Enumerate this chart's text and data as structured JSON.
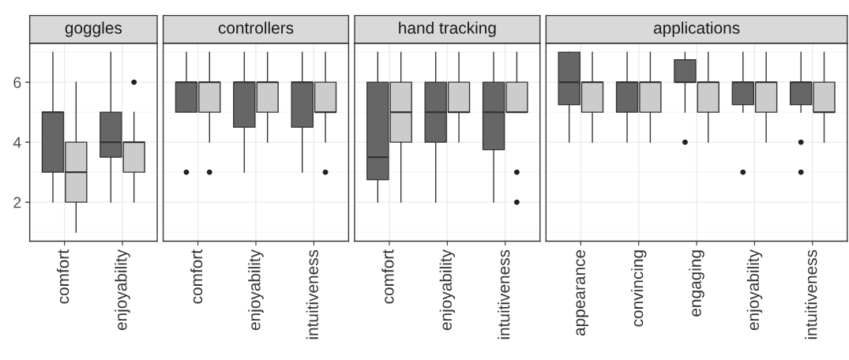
{
  "chart_data": [
    {
      "type": "box",
      "title": "goggles",
      "categories": [
        "comfort",
        "enjoyability"
      ],
      "ylim": [
        0.7,
        7.3
      ],
      "yticks": [
        2,
        4,
        6
      ],
      "grid": true,
      "series": [
        {
          "color": "#666666",
          "boxes": [
            {
              "low": 2,
              "q1": 3,
              "median": 5,
              "q3": 5,
              "high": 7
            },
            {
              "low": 2,
              "q1": 3.5,
              "median": 4,
              "q3": 5,
              "high": 7
            }
          ]
        },
        {
          "color": "#cccccc",
          "boxes": [
            {
              "low": 1,
              "q1": 2,
              "median": 3,
              "q3": 4,
              "high": 6
            },
            {
              "low": 2,
              "q1": 3,
              "median": 4,
              "q3": 4,
              "high": 5,
              "outliers": [
                6
              ]
            }
          ]
        }
      ]
    },
    {
      "type": "box",
      "title": "controllers",
      "categories": [
        "comfort",
        "enjoyability",
        "intuitiveness"
      ],
      "ylim": [
        0.7,
        7.3
      ],
      "yticks": [
        2,
        4,
        6
      ],
      "grid": true,
      "tick_labels": "x",
      "series": [
        {
          "color": "#666666",
          "boxes": [
            {
              "low": 5,
              "q1": 5,
              "median": 6,
              "q3": 6,
              "high": 7,
              "outliers": [
                3
              ]
            },
            {
              "low": 3,
              "q1": 4.5,
              "median": 6,
              "q3": 6,
              "high": 7
            },
            {
              "low": 3,
              "q1": 4.5,
              "median": 6,
              "q3": 6,
              "high": 7
            }
          ]
        },
        {
          "color": "#cccccc",
          "boxes": [
            {
              "low": 4,
              "q1": 5,
              "median": 6,
              "q3": 6,
              "high": 7,
              "outliers": [
                3
              ]
            },
            {
              "low": 4,
              "q1": 5,
              "median": 6,
              "q3": 6,
              "high": 7
            },
            {
              "low": 4,
              "q1": 5,
              "median": 5,
              "q3": 6,
              "high": 7,
              "outliers": [
                3
              ]
            }
          ]
        }
      ]
    },
    {
      "type": "box",
      "title": "hand tracking",
      "categories": [
        "comfort",
        "enjoyability",
        "intuitiveness"
      ],
      "ylim": [
        0.7,
        7.3
      ],
      "yticks": [
        2,
        4,
        6
      ],
      "grid": true,
      "tick_labels": "x",
      "series": [
        {
          "color": "#666666",
          "boxes": [
            {
              "low": 2,
              "q1": 2.75,
              "median": 3.5,
              "q3": 6,
              "high": 7
            },
            {
              "low": 2,
              "q1": 4,
              "median": 5,
              "q3": 6,
              "high": 7
            },
            {
              "low": 2,
              "q1": 3.75,
              "median": 5,
              "q3": 6,
              "high": 7
            }
          ]
        },
        {
          "color": "#cccccc",
          "boxes": [
            {
              "low": 2,
              "q1": 4,
              "median": 5,
              "q3": 6,
              "high": 7
            },
            {
              "low": 4,
              "q1": 5,
              "median": 5,
              "q3": 6,
              "high": 7
            },
            {
              "low": 5,
              "q1": 5,
              "median": 5,
              "q3": 6,
              "high": 7,
              "outliers": [
                3,
                2
              ]
            }
          ]
        }
      ]
    },
    {
      "type": "box",
      "title": "applications",
      "categories": [
        "appearance",
        "convincing",
        "engaging",
        "enjoyability",
        "intuitiveness"
      ],
      "ylim": [
        0.7,
        7.3
      ],
      "yticks": [
        2,
        4,
        6
      ],
      "grid": true,
      "tick_labels": "x",
      "series": [
        {
          "color": "#666666",
          "boxes": [
            {
              "low": 4,
              "q1": 5.25,
              "median": 6,
              "q3": 7,
              "high": 7
            },
            {
              "low": 4,
              "q1": 5,
              "median": 6,
              "q3": 6,
              "high": 7
            },
            {
              "low": 5,
              "q1": 6,
              "median": 6,
              "q3": 6.75,
              "high": 7,
              "outliers": [
                4
              ]
            },
            {
              "low": 5,
              "q1": 5.25,
              "median": 6,
              "q3": 6,
              "high": 7,
              "outliers": [
                3
              ]
            },
            {
              "low": 5,
              "q1": 5.25,
              "median": 6,
              "q3": 6,
              "high": 7,
              "outliers": [
                4,
                3
              ]
            }
          ]
        },
        {
          "color": "#cccccc",
          "boxes": [
            {
              "low": 4,
              "q1": 5,
              "median": 6,
              "q3": 6,
              "high": 7
            },
            {
              "low": 4,
              "q1": 5,
              "median": 6,
              "q3": 6,
              "high": 7
            },
            {
              "low": 4,
              "q1": 5,
              "median": 6,
              "q3": 6,
              "high": 7
            },
            {
              "low": 4,
              "q1": 5,
              "median": 6,
              "q3": 6,
              "high": 7
            },
            {
              "low": 4,
              "q1": 5,
              "median": 5,
              "q3": 6,
              "high": 7
            }
          ]
        }
      ]
    }
  ]
}
